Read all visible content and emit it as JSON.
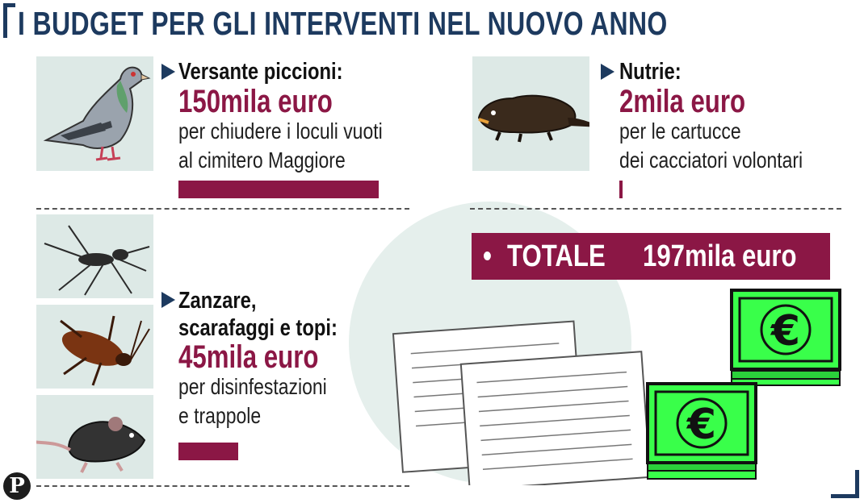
{
  "title": "I BUDGET PER GLI INTERVENTI NEL NUOVO ANNO",
  "colors": {
    "accent": "#8b1745",
    "navy": "#1d3a5f",
    "tile": "#dde9e6",
    "money": "#39ff4a"
  },
  "icons": [
    "pigeon-icon",
    "nutria-icon",
    "mosquito-icon",
    "cockroach-icon",
    "mouse-icon",
    "document-icon",
    "euro-banknote-icon",
    "publisher-logo"
  ],
  "logo_letter": "P",
  "items": [
    {
      "label": "Versante piccioni:",
      "amount": "150mila euro",
      "desc1": "per chiudere i loculi vuoti",
      "desc2": "al cimitero Maggiore"
    },
    {
      "label": "Nutrie:",
      "amount": "2mila euro",
      "desc1": "per le cartucce",
      "desc2": "dei cacciatori volontari"
    },
    {
      "label1": "Zanzare,",
      "label2": "scarafaggi e topi:",
      "amount": "45mila euro",
      "desc1": "per disinfestazioni",
      "desc2": "e trappole"
    }
  ],
  "total": {
    "bullet": "•",
    "label": "TOTALE",
    "amount": "197mila euro"
  },
  "chart_data": {
    "type": "bar",
    "categories": [
      "Versante piccioni",
      "Nutrie",
      "Zanzare, scarafaggi e topi"
    ],
    "values": [
      150,
      2,
      45
    ],
    "unit": "mila euro",
    "total": 197
  }
}
